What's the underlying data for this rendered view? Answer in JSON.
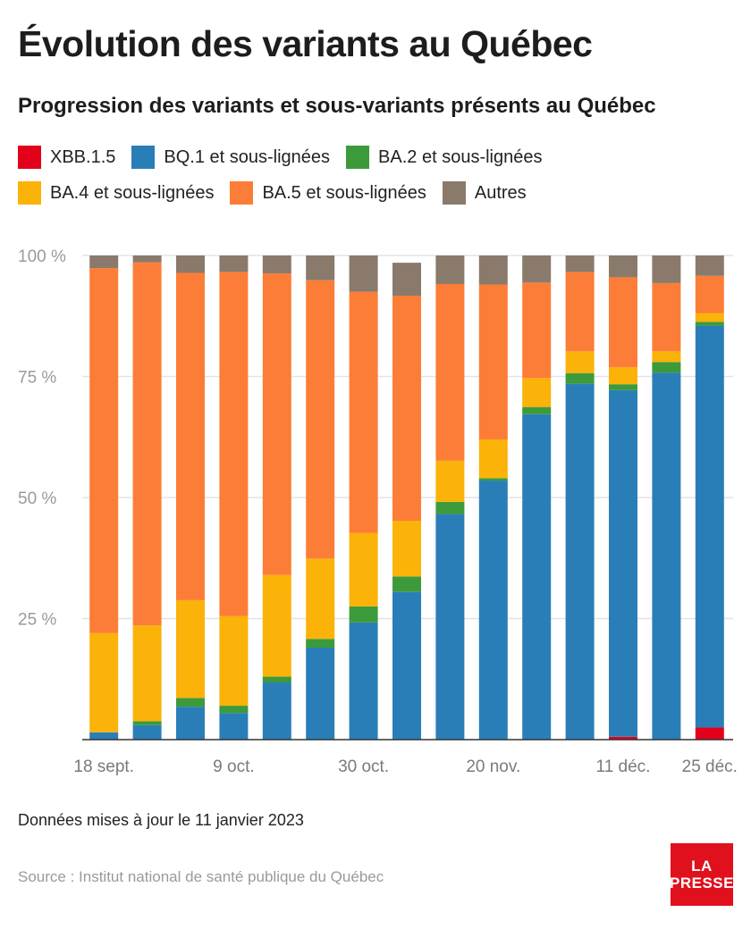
{
  "header": {
    "title": "Évolution des variants au Québec",
    "subtitle": "Progression des variants et sous-variants présents au Québec"
  },
  "footer": {
    "note": "Données mises à jour le 11 janvier 2023",
    "source": "Source : Institut national de santé publique du Québec",
    "logo_line1": "LA",
    "logo_line2": "PRESSE"
  },
  "chart_data": {
    "type": "bar",
    "stacked": true,
    "title": "Progression des variants et sous-variants présents au Québec",
    "ylim": [
      0,
      100
    ],
    "yticks": [
      25,
      50,
      75,
      100
    ],
    "ytick_labels": [
      "25 %",
      "50 %",
      "75 %",
      "100 %"
    ],
    "grid": true,
    "legend_position": "top",
    "x_tick_labels": [
      {
        "index": 0,
        "label": "18 sept."
      },
      {
        "index": 3,
        "label": "9 oct."
      },
      {
        "index": 6,
        "label": "30 oct."
      },
      {
        "index": 9,
        "label": "20 nov."
      },
      {
        "index": 12,
        "label": "11 déc."
      },
      {
        "index": 14,
        "label": "25 déc."
      }
    ],
    "num_bars": 15,
    "series": [
      {
        "name": "XBB.1.5",
        "color": "#e3001b",
        "values": [
          0,
          0,
          0,
          0,
          0,
          0,
          0,
          0,
          0,
          0,
          0,
          0,
          0.6,
          0,
          2.5
        ]
      },
      {
        "name": "BQ.1 et sous-lignées",
        "color": "#2a7eb8",
        "values": [
          1.5,
          3,
          6.8,
          5.5,
          11.8,
          19,
          24.2,
          30.5,
          46.6,
          53.5,
          67.2,
          73.5,
          71.6,
          75.8,
          83
        ]
      },
      {
        "name": "BA.2 et sous-lignées",
        "color": "#3d9a3a",
        "values": [
          0,
          0.8,
          1.8,
          1.5,
          1.2,
          1.8,
          3.3,
          3.2,
          2.5,
          0.5,
          1.5,
          2.2,
          1.2,
          2.2,
          0.8
        ]
      },
      {
        "name": "BA.4 et sous-lignées",
        "color": "#fbb209",
        "values": [
          20.5,
          19.8,
          20.2,
          18.5,
          21,
          16.6,
          15.2,
          11.5,
          8.5,
          8,
          6,
          4.5,
          3.5,
          2.2,
          1.8
        ]
      },
      {
        "name": "BA.5 et sous-lignées",
        "color": "#fc7d37",
        "values": [
          75.4,
          75,
          67.6,
          71.1,
          62.3,
          57.5,
          49.8,
          46.5,
          36.5,
          32,
          19.7,
          16.4,
          18.6,
          14.1,
          7.7
        ]
      },
      {
        "name": "Autres",
        "color": "#8a7a6c",
        "values": [
          2.6,
          1.4,
          3.6,
          3.4,
          3.7,
          5.1,
          7.5,
          6.8,
          5.9,
          6,
          5.6,
          3.4,
          4.5,
          5.7,
          4.2
        ]
      }
    ]
  }
}
